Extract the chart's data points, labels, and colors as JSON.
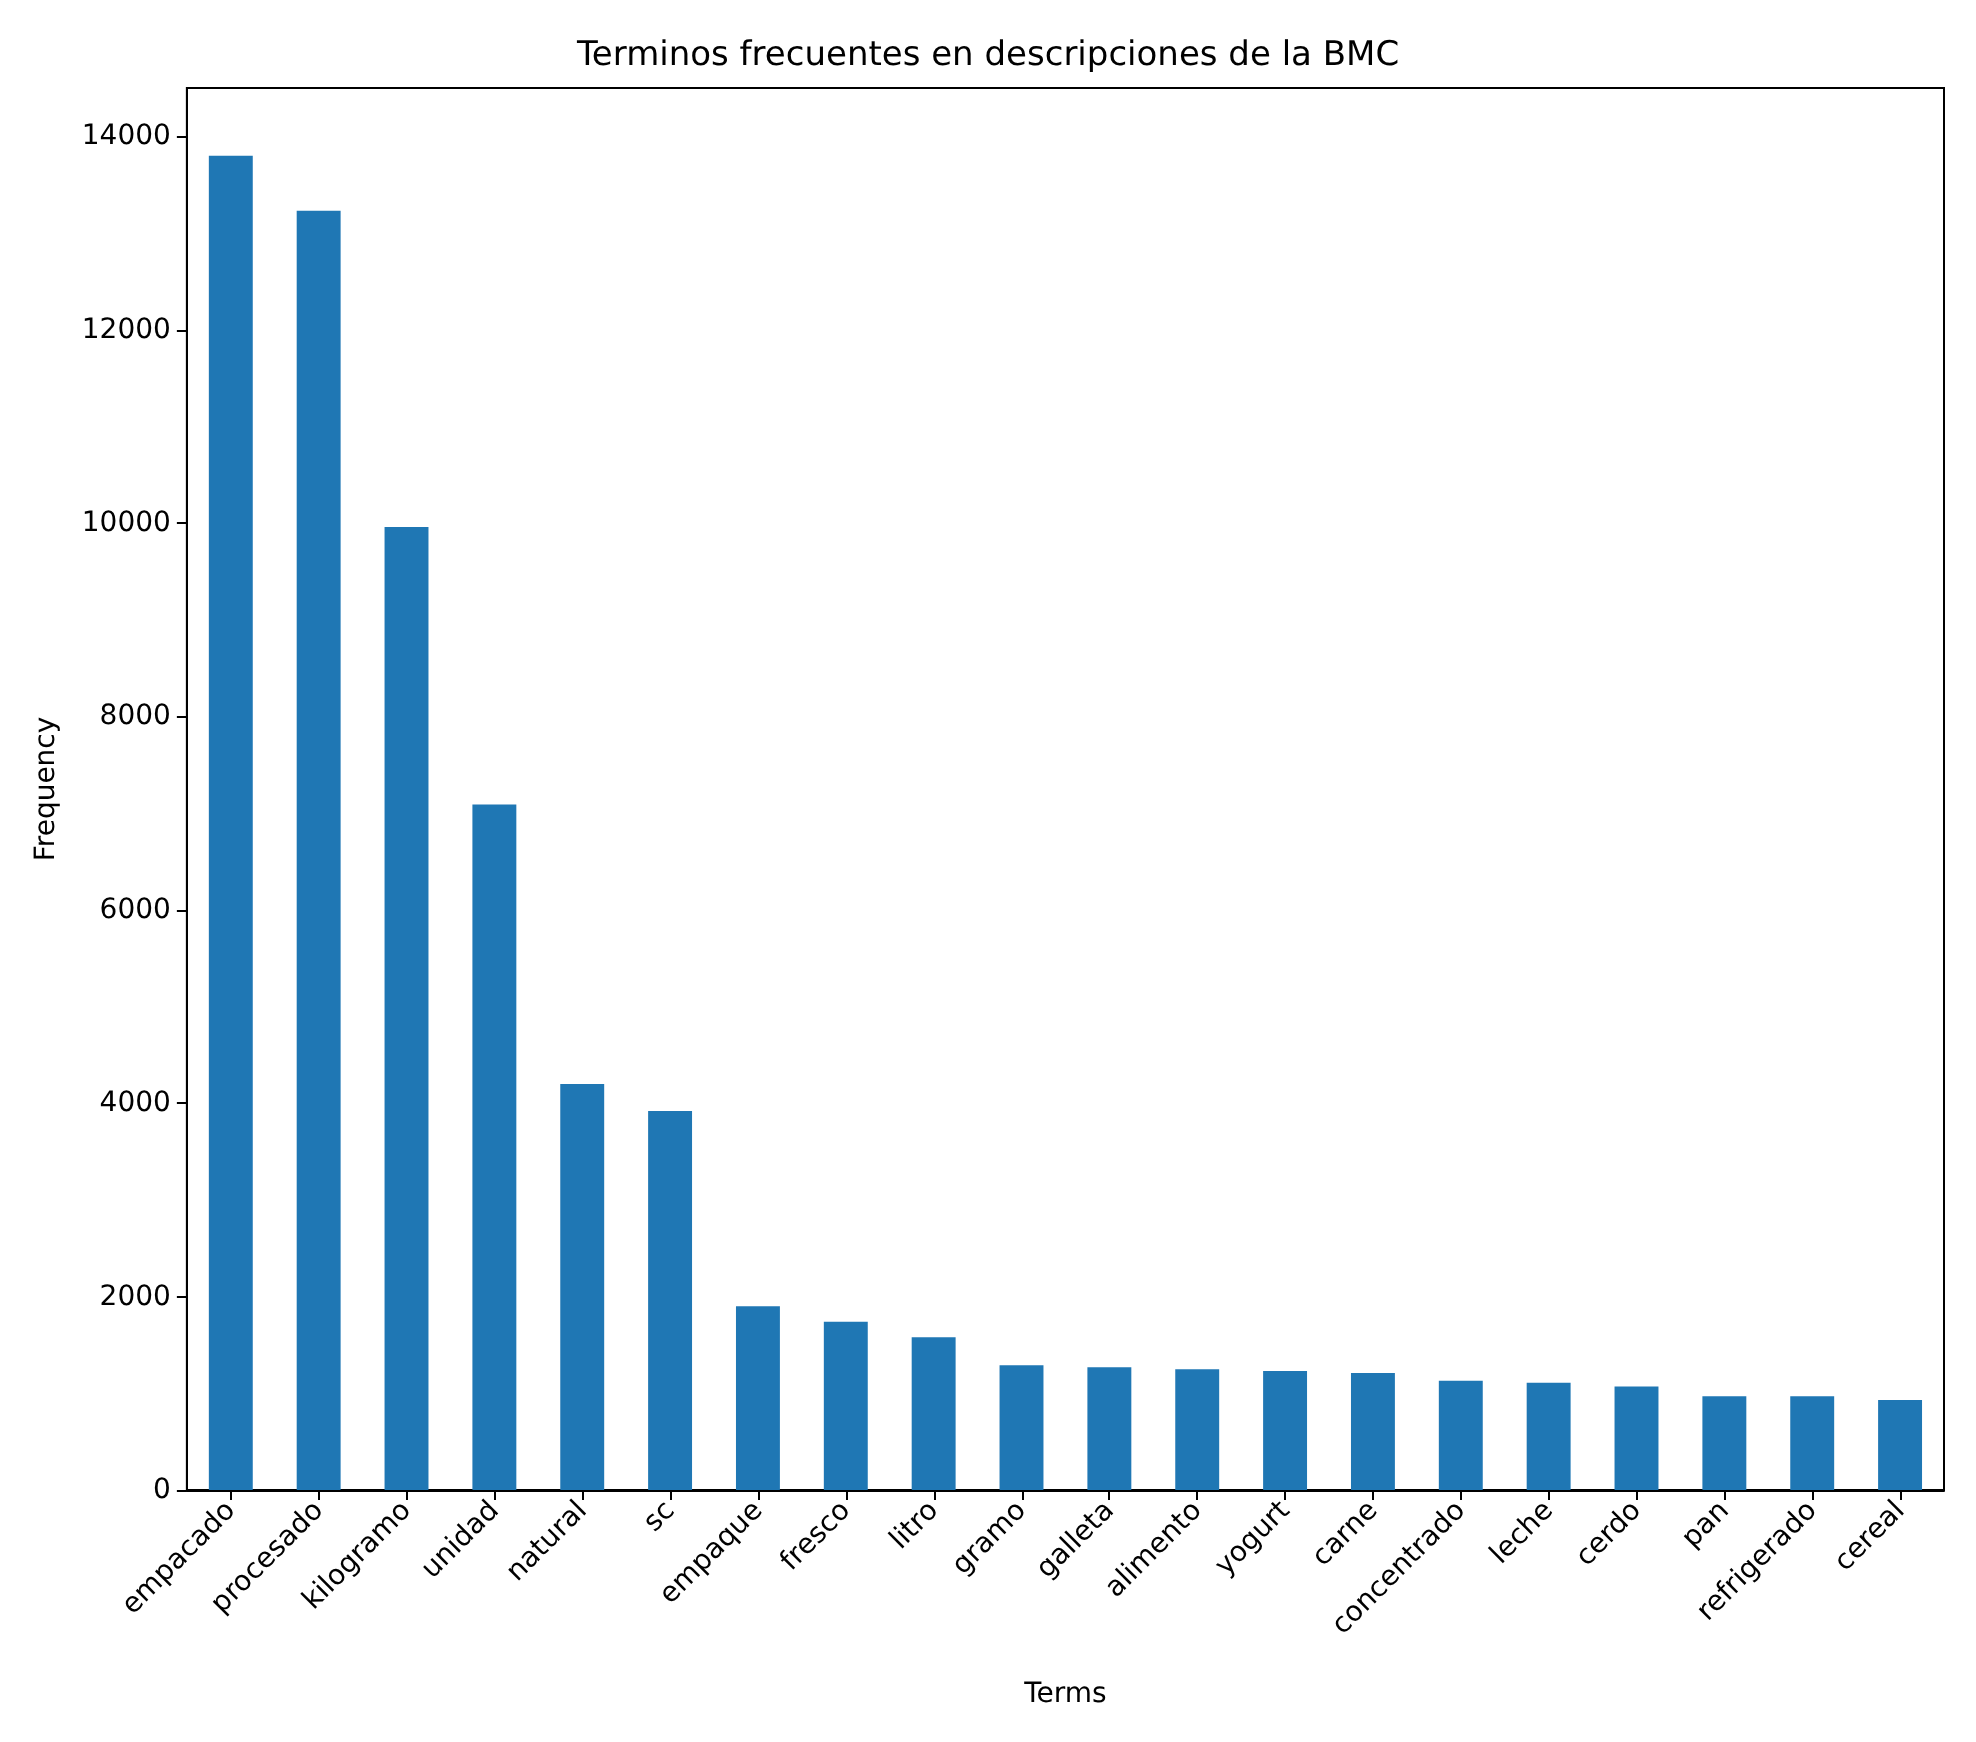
{
  "chart_data": {
    "type": "bar",
    "title": "Terminos frecuentes en descripciones de la BMC",
    "xlabel": "Terms",
    "ylabel": "Frequency",
    "categories": [
      "empacado",
      "procesado",
      "kilogramo",
      "unidad",
      "natural",
      "sc",
      "empaque",
      "fresco",
      "litro",
      "gramo",
      "galleta",
      "alimento",
      "yogurt",
      "carne",
      "concentrado",
      "leche",
      "cerdo",
      "pan",
      "refrigerado",
      "cereal"
    ],
    "values": [
      13800,
      13230,
      9960,
      7090,
      4200,
      3920,
      1900,
      1740,
      1580,
      1290,
      1270,
      1250,
      1230,
      1210,
      1130,
      1110,
      1070,
      970,
      970,
      930
    ],
    "color": "#1f77b4",
    "ylim": [
      0,
      14500
    ],
    "yticks": [
      0,
      2000,
      4000,
      6000,
      8000,
      10000,
      12000,
      14000
    ],
    "grid": false
  }
}
